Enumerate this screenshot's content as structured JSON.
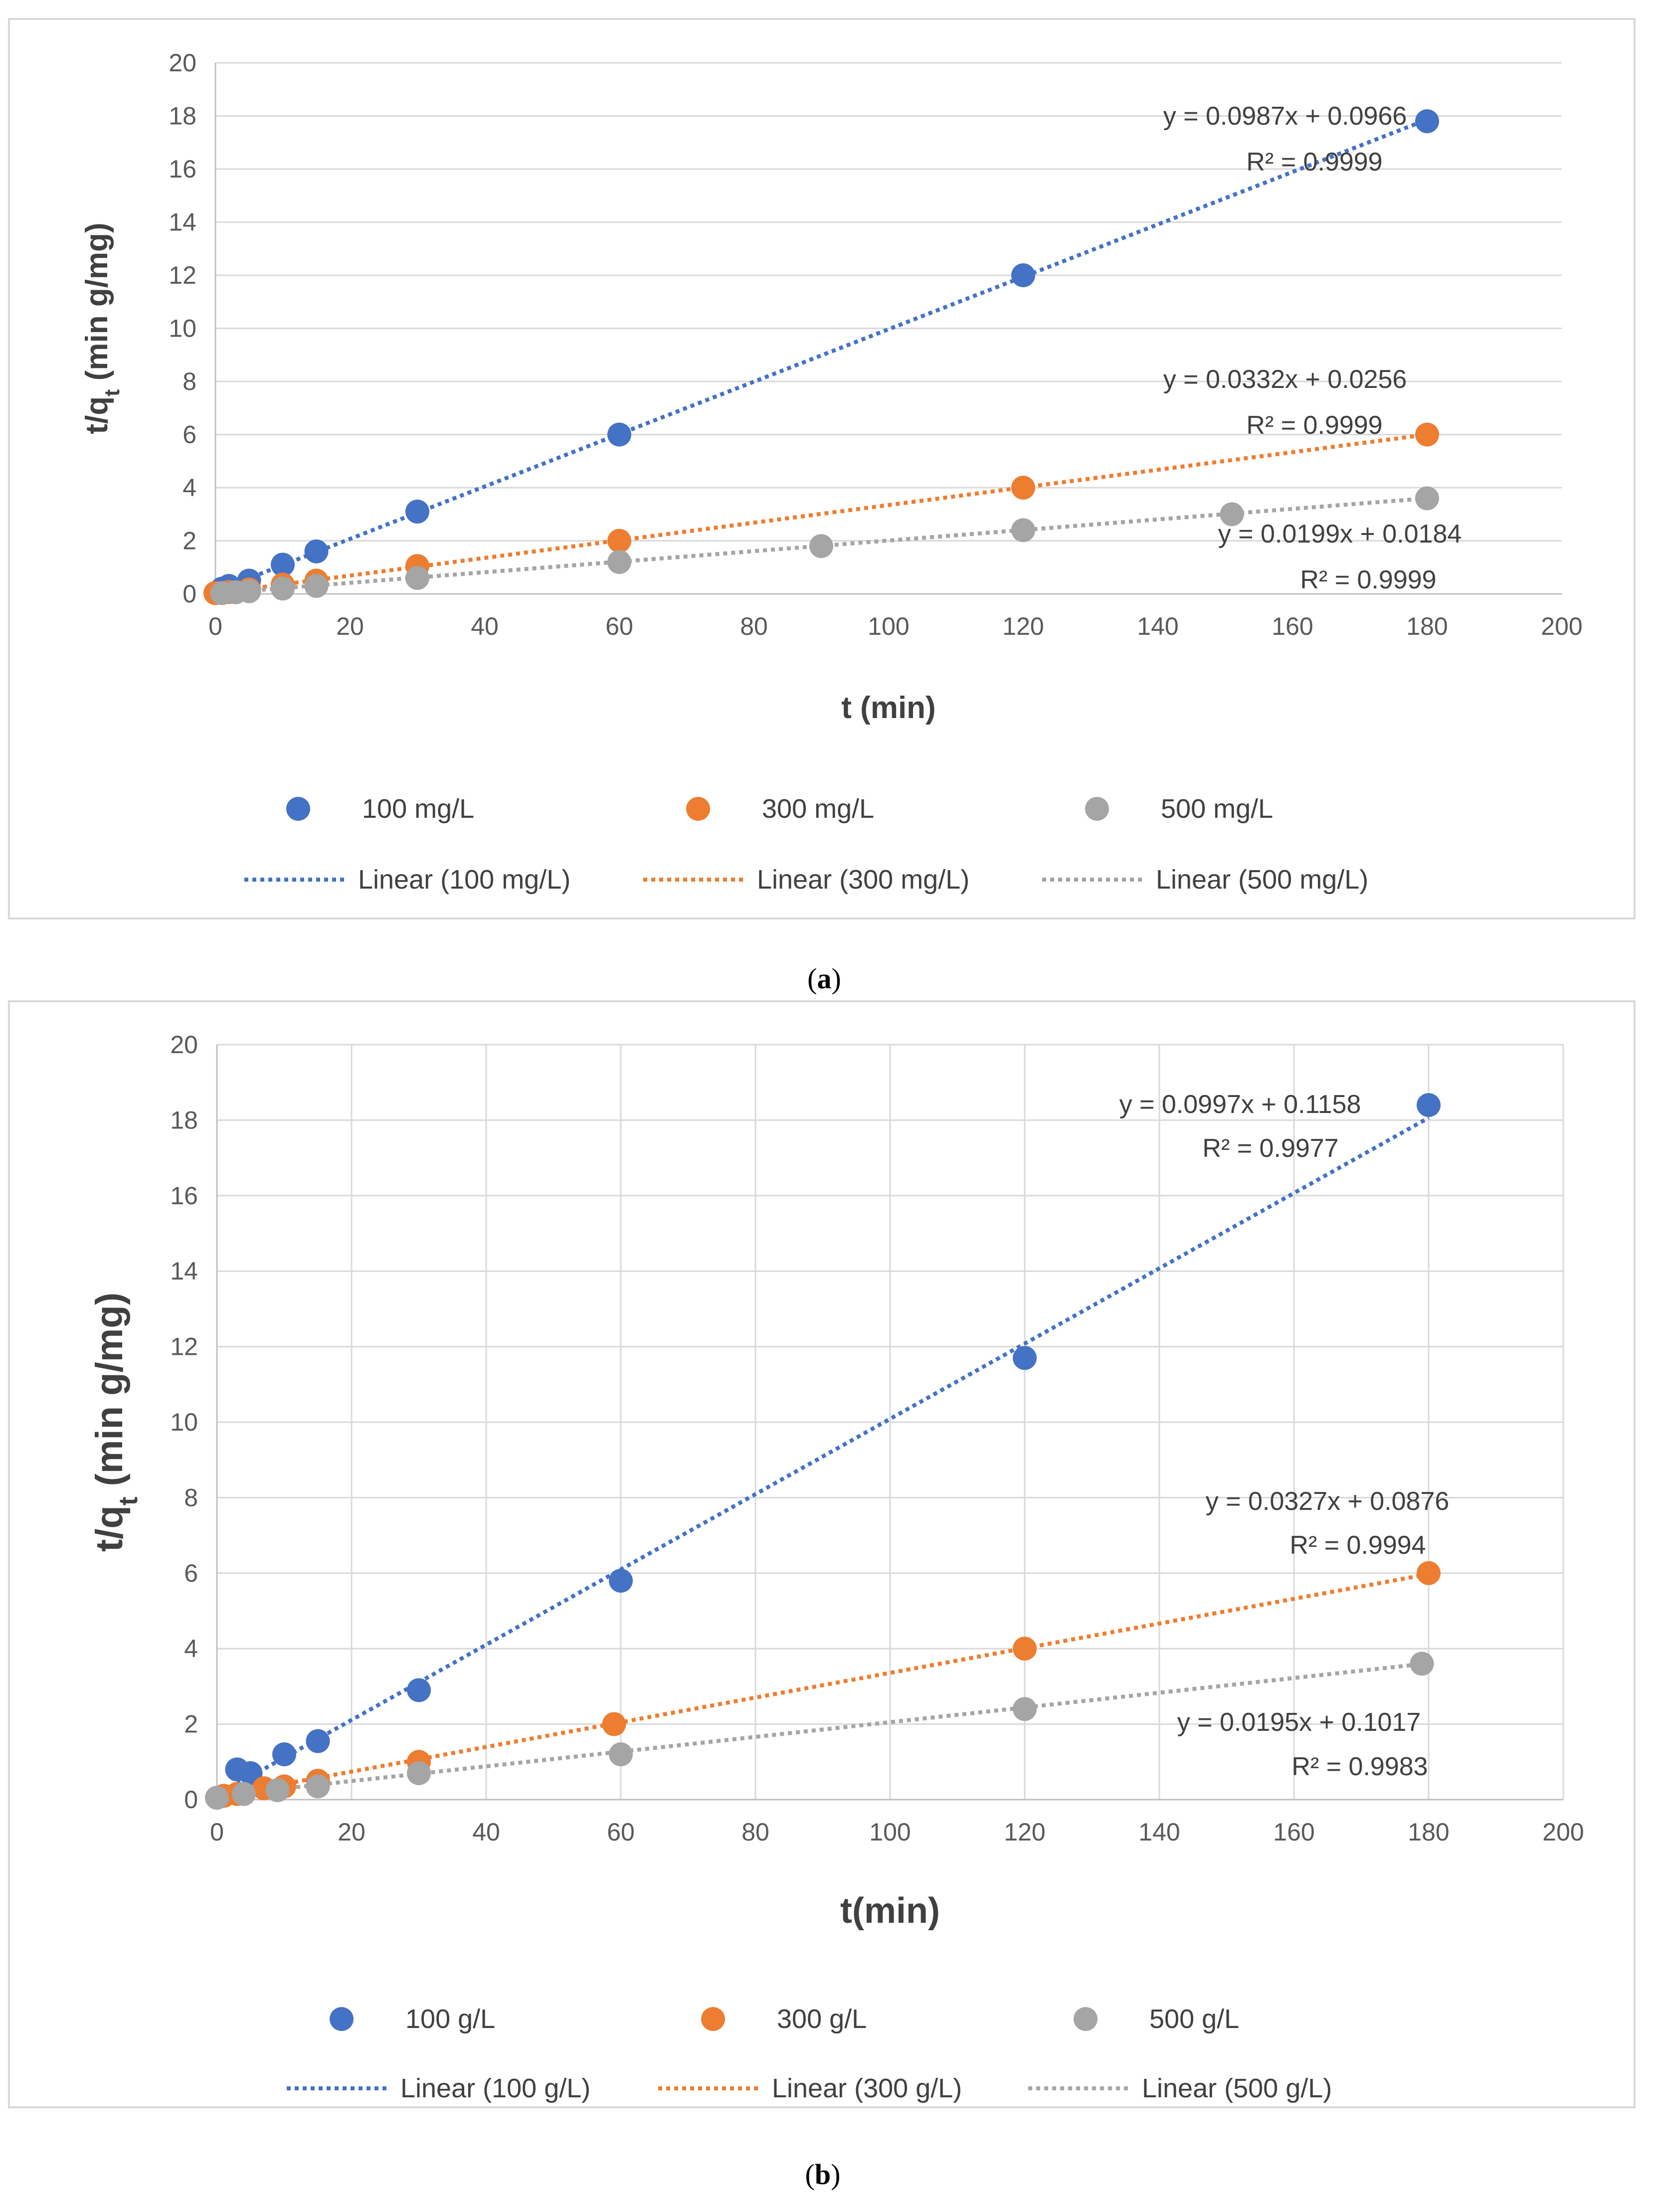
{
  "chart_data": [
    {
      "type": "scatter",
      "panel_label": "a",
      "xlabel": "t (min)",
      "ylabel_main": "t/q",
      "ylabel_sub": "t",
      "ylabel_tail": " (min g/mg)",
      "xlim": [
        0,
        200
      ],
      "ylim": [
        0,
        20
      ],
      "xticks": [
        "0",
        "20",
        "40",
        "60",
        "80",
        "100",
        "120",
        "140",
        "160",
        "180",
        "200"
      ],
      "yticks": [
        "0",
        "2",
        "4",
        "6",
        "8",
        "10",
        "12",
        "14",
        "16",
        "18",
        "20"
      ],
      "grid": "horizontal",
      "legend_position": "bottom",
      "series": [
        {
          "name": "100 mg/L",
          "color": "#4472C4",
          "points": [
            [
              1,
              0.2
            ],
            [
              2,
              0.3
            ],
            [
              5,
              0.5
            ],
            [
              10,
              1.1
            ],
            [
              15,
              1.6
            ],
            [
              30,
              3.1
            ],
            [
              60,
              6.0
            ],
            [
              120,
              12.0
            ],
            [
              180,
              17.8
            ]
          ],
          "trendline": {
            "name": "Linear (100 mg/L)",
            "slope": 0.0987,
            "intercept": 0.0966
          },
          "equation": "y = 0.0987x + 0.0966",
          "r2": "R² = 0.9999"
        },
        {
          "name": "300 mg/L",
          "color": "#ED7D31",
          "points": [
            [
              0,
              0.03
            ],
            [
              2,
              0.07
            ],
            [
              5,
              0.17
            ],
            [
              10,
              0.35
            ],
            [
              15,
              0.5
            ],
            [
              30,
              1.05
            ],
            [
              60,
              2.0
            ],
            [
              120,
              4.0
            ],
            [
              180,
              6.0
            ]
          ],
          "trendline": {
            "name": "Linear (300 mg/L)",
            "slope": 0.0332,
            "intercept": 0.0256
          },
          "equation": "y = 0.0332x + 0.0256",
          "r2": "R² = 0.9999"
        },
        {
          "name": "500 mg/L",
          "color": "#A5A5A5",
          "points": [
            [
              1,
              0.03
            ],
            [
              3,
              0.06
            ],
            [
              5,
              0.1
            ],
            [
              10,
              0.2
            ],
            [
              15,
              0.3
            ],
            [
              30,
              0.6
            ],
            [
              60,
              1.2
            ],
            [
              90,
              1.8
            ],
            [
              120,
              2.4
            ],
            [
              151,
              3.0
            ],
            [
              180,
              3.6
            ]
          ],
          "trendline": {
            "name": "Linear (500 mg/L)",
            "slope": 0.0199,
            "intercept": 0.0184
          },
          "equation": "y = 0.0199x + 0.0184",
          "r2": "R² = 0.9999"
        }
      ]
    },
    {
      "type": "scatter",
      "panel_label": "b",
      "xlabel": "t(min)",
      "ylabel_main": "t/q",
      "ylabel_sub": "t",
      "ylabel_tail": " (min g/mg)",
      "xlim": [
        0,
        200
      ],
      "ylim": [
        0,
        20
      ],
      "xticks": [
        "0",
        "20",
        "40",
        "60",
        "80",
        "100",
        "120",
        "140",
        "160",
        "180",
        "200"
      ],
      "yticks": [
        "0",
        "2",
        "4",
        "6",
        "8",
        "10",
        "12",
        "14",
        "16",
        "18",
        "20"
      ],
      "grid": "both",
      "legend_position": "bottom",
      "series": [
        {
          "name": "100 g/L",
          "color": "#4472C4",
          "points": [
            [
              3,
              0.8
            ],
            [
              5,
              0.7
            ],
            [
              10,
              1.2
            ],
            [
              15,
              1.55
            ],
            [
              30,
              2.9
            ],
            [
              60,
              5.8
            ],
            [
              120,
              11.7
            ],
            [
              180,
              18.4
            ]
          ],
          "trendline": {
            "name": "Linear (100 g/L)",
            "slope": 0.0997,
            "intercept": 0.1158
          },
          "equation": "y = 0.0997x + 0.1158",
          "r2": "R² = 0.9977"
        },
        {
          "name": "300 g/L",
          "color": "#ED7D31",
          "points": [
            [
              1,
              0.1
            ],
            [
              3,
              0.15
            ],
            [
              7,
              0.3
            ],
            [
              10,
              0.35
            ],
            [
              15,
              0.5
            ],
            [
              30,
              1.0
            ],
            [
              59,
              2.0
            ],
            [
              120,
              4.0
            ],
            [
              180,
              6.0
            ]
          ],
          "trendline": {
            "name": "Linear (300 g/L)",
            "slope": 0.0327,
            "intercept": 0.0876
          },
          "equation": "y = 0.0327x + 0.0876",
          "r2": "R² = 0.9994"
        },
        {
          "name": "500 g/L",
          "color": "#A5A5A5",
          "points": [
            [
              0,
              0.05
            ],
            [
              4,
              0.15
            ],
            [
              9,
              0.25
            ],
            [
              15,
              0.35
            ],
            [
              30,
              0.7
            ],
            [
              60,
              1.2
            ],
            [
              120,
              2.4
            ],
            [
              179,
              3.6
            ]
          ],
          "trendline": {
            "name": "Linear (500 g/L)",
            "slope": 0.0195,
            "intercept": 0.1017
          },
          "equation": "y = 0.0195x + 0.1017",
          "r2": "R² = 0.9983"
        }
      ]
    }
  ]
}
